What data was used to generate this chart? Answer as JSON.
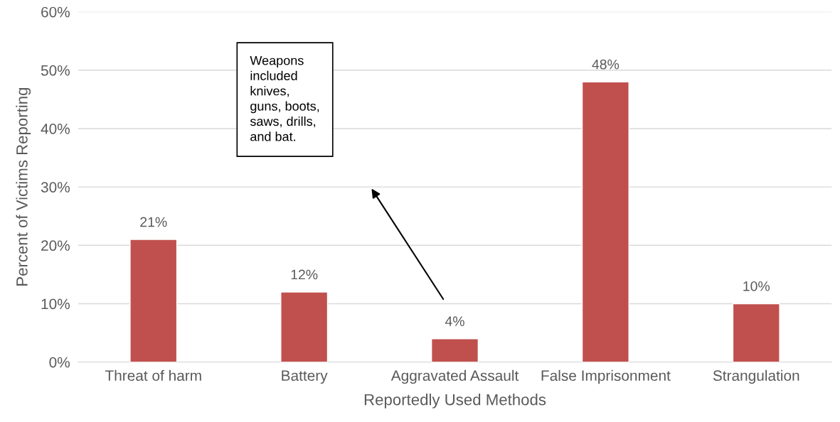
{
  "chart_data": {
    "type": "bar",
    "xlabel": "Reportedly Used Methods",
    "ylabel": "Percent of Victims Reporting",
    "categories": [
      "Threat of harm",
      "Battery",
      "Aggravated Assault",
      "False Imprisonment",
      "Strangulation"
    ],
    "values": [
      21,
      12,
      4,
      48,
      10
    ],
    "color": "#c0504d",
    "value_labels": [
      "21%",
      "12%",
      "4%",
      "48%",
      "10%"
    ],
    "ylim": [
      0,
      60
    ],
    "yticks": [
      {
        "value": 0,
        "label": "0%"
      },
      {
        "value": 10,
        "label": "10%"
      },
      {
        "value": 20,
        "label": "20%"
      },
      {
        "value": 30,
        "label": "30%"
      },
      {
        "value": 40,
        "label": "40%"
      },
      {
        "value": 50,
        "label": "50%"
      },
      {
        "value": 60,
        "label": "60%"
      }
    ],
    "grid": "y",
    "legend": false,
    "annotations": [
      "Weapons\nincluded\nknives,\nguns, boots,\nsaws, drills,\nand bat."
    ]
  }
}
